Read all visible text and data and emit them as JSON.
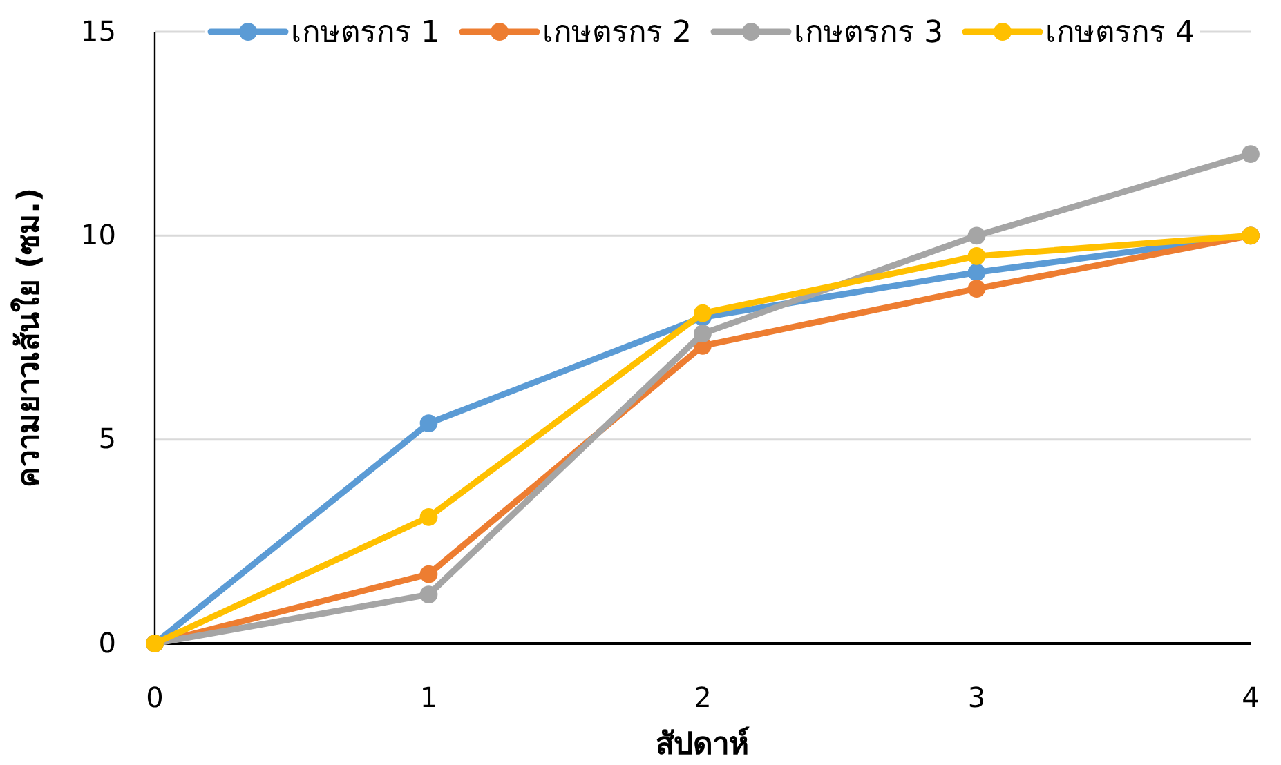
{
  "chart_data": {
    "type": "line",
    "xlabel": "สัปดาห์",
    "ylabel": "ความยาวเส้นใย (ซม.)",
    "x": [
      0,
      1,
      2,
      3,
      4
    ],
    "series": [
      {
        "name": "เกษตรกร 1",
        "color": "#5b9bd5",
        "values": [
          0,
          5.4,
          8.0,
          9.1,
          10
        ]
      },
      {
        "name": "เกษตรกร 2",
        "color": "#ed7d31",
        "values": [
          0,
          1.7,
          7.3,
          8.7,
          10
        ]
      },
      {
        "name": "เกษตรกร 3",
        "color": "#a5a5a5",
        "values": [
          0,
          1.2,
          7.6,
          10,
          12
        ]
      },
      {
        "name": "เกษตรกร 4",
        "color": "#ffc000",
        "values": [
          0,
          3.1,
          8.1,
          9.5,
          10
        ]
      }
    ],
    "xlim": [
      0,
      4
    ],
    "xticks": [
      0,
      1,
      2,
      3,
      4
    ],
    "ylim": [
      0,
      15
    ],
    "yticks": [
      0,
      5,
      10,
      15
    ],
    "grid": "y",
    "legend": "top",
    "marker": "circle",
    "line_style": "solid"
  }
}
